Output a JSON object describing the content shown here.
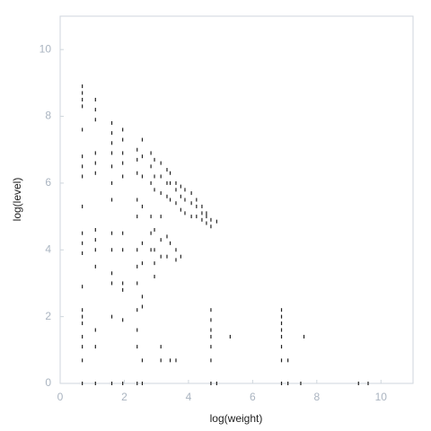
{
  "chart_data": {
    "type": "scatter",
    "x_label": "log(weight)",
    "y_label": "log(level)",
    "xlim": [
      0,
      11
    ],
    "ylim": [
      0,
      11
    ],
    "xticks": [
      0,
      2,
      4,
      6,
      8,
      10
    ],
    "yticks": [
      0,
      2,
      4,
      6,
      8,
      10
    ],
    "grid": false,
    "color": "#222222",
    "x": [
      0.69,
      0.69,
      0.69,
      0.69,
      0.69,
      0.69,
      0.69,
      0.69,
      0.69,
      0.69,
      0.69,
      0.69,
      0.69,
      0.69,
      0.69,
      0.69,
      0.69,
      0.69,
      0.69,
      0.69,
      1.1,
      1.1,
      1.1,
      1.1,
      1.1,
      1.1,
      1.1,
      1.1,
      1.1,
      1.1,
      1.1,
      1.1,
      1.1,
      1.61,
      1.61,
      1.61,
      1.61,
      1.61,
      1.61,
      1.61,
      1.61,
      1.61,
      1.61,
      1.61,
      1.61,
      1.61,
      1.95,
      1.95,
      1.95,
      1.95,
      1.95,
      1.95,
      1.95,
      1.95,
      1.95,
      1.95,
      1.95,
      2.4,
      2.4,
      2.4,
      2.4,
      2.4,
      2.4,
      2.4,
      2.4,
      2.4,
      2.4,
      2.4,
      2.4,
      2.56,
      2.56,
      2.56,
      2.56,
      2.56,
      2.56,
      2.56,
      2.56,
      2.56,
      2.56,
      2.83,
      2.83,
      2.83,
      2.83,
      2.83,
      2.83,
      2.94,
      2.94,
      2.94,
      2.94,
      2.94,
      2.94,
      2.94,
      3.14,
      3.14,
      3.14,
      3.14,
      3.14,
      3.14,
      3.14,
      3.14,
      3.33,
      3.33,
      3.33,
      3.33,
      3.33,
      3.43,
      3.43,
      3.43,
      3.43,
      3.43,
      3.61,
      3.61,
      3.61,
      3.61,
      3.61,
      3.61,
      3.76,
      3.76,
      3.76,
      3.76,
      3.89,
      3.89,
      3.89,
      4.09,
      4.09,
      4.09,
      4.25,
      4.25,
      4.25,
      4.42,
      4.42,
      4.42,
      4.56,
      4.56,
      4.56,
      4.7,
      4.7,
      4.7,
      4.7,
      4.7,
      4.7,
      4.7,
      4.7,
      4.7,
      4.88,
      4.88,
      5.3,
      6.9,
      6.9,
      6.9,
      6.9,
      6.9,
      6.9,
      6.9,
      6.9,
      7.1,
      7.1,
      7.5,
      7.6,
      9.3,
      9.6
    ],
    "values": [
      8.3,
      8.5,
      8.7,
      8.9,
      7.6,
      6.2,
      6.5,
      6.8,
      5.3,
      3.9,
      4.2,
      4.5,
      2.9,
      2.2,
      2.0,
      1.8,
      1.4,
      1.1,
      0.69,
      0,
      7.9,
      8.2,
      8.5,
      6.3,
      6.6,
      6.9,
      4.0,
      4.3,
      4.6,
      3.5,
      1.6,
      1.1,
      0,
      7.2,
      7.5,
      7.8,
      5.5,
      6.0,
      6.5,
      6.9,
      4.0,
      4.5,
      3.3,
      3.0,
      2.0,
      0,
      6.9,
      7.3,
      7.6,
      6.2,
      6.6,
      4.0,
      4.5,
      3.0,
      2.8,
      1.9,
      0,
      6.3,
      6.7,
      7.0,
      5.0,
      5.5,
      4.0,
      3.5,
      3.0,
      2.2,
      1.6,
      1.1,
      0,
      6.2,
      6.8,
      7.3,
      5.3,
      4.2,
      3.6,
      2.6,
      2.3,
      0.69,
      0,
      6.0,
      6.5,
      6.9,
      5.0,
      4.5,
      4.0,
      5.8,
      6.2,
      6.7,
      4.6,
      4.0,
      3.6,
      3.2,
      5.7,
      6.2,
      6.6,
      5.0,
      4.3,
      3.8,
      1.1,
      0.69,
      5.6,
      6.0,
      6.4,
      4.4,
      3.8,
      5.5,
      6.0,
      6.3,
      4.2,
      0.69,
      5.4,
      5.8,
      6.0,
      4.0,
      3.7,
      0.69,
      5.2,
      5.6,
      5.9,
      3.8,
      5.1,
      5.5,
      5.8,
      5.0,
      5.4,
      5.7,
      5.0,
      5.3,
      5.5,
      4.9,
      5.1,
      5.3,
      4.8,
      5.0,
      5.1,
      4.7,
      4.9,
      2.2,
      1.9,
      1.6,
      1.4,
      1.1,
      0.69,
      0,
      4.85,
      0,
      1.4,
      2.2,
      2.0,
      1.8,
      1.6,
      1.4,
      1.1,
      0.69,
      0,
      0.69,
      0,
      0,
      1.4,
      0,
      0
    ]
  }
}
